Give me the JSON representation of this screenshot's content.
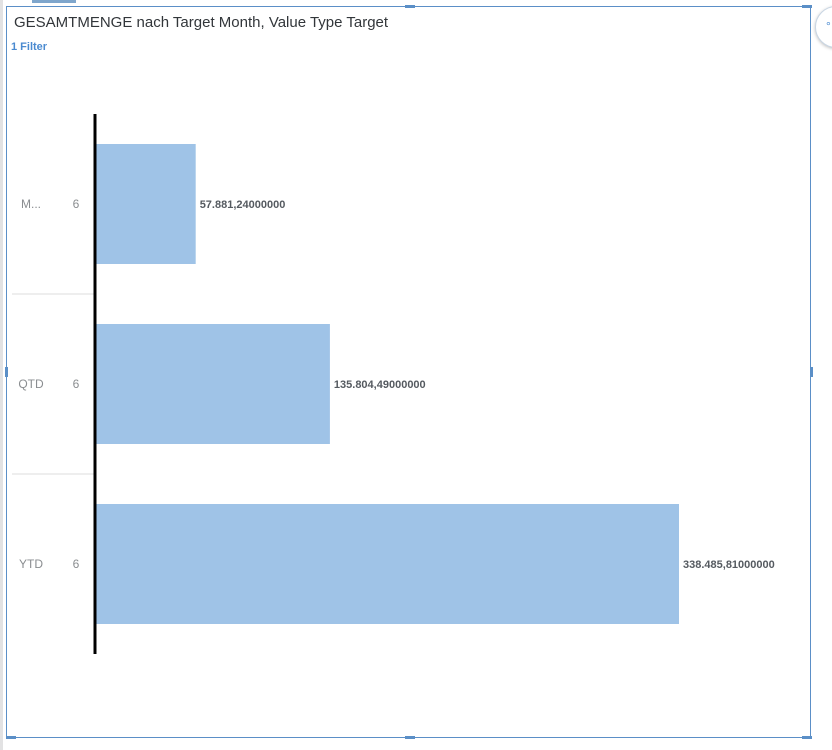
{
  "widget": {
    "title": "GESAMTMENGE nach Target Month, Value Type Target",
    "filter_label": "1 Filter"
  },
  "colors": {
    "bar": "#9fc3e7",
    "axis": "#000000",
    "separator": "#dcdcdc",
    "accent": "#4a8ad0"
  },
  "chart_data": {
    "type": "bar",
    "orientation": "horizontal",
    "title": "GESAMTMENGE nach Target Month, Value Type Target",
    "categories": [
      {
        "label": "M...",
        "sub_label": "6"
      },
      {
        "label": "QTD",
        "sub_label": "6"
      },
      {
        "label": "YTD",
        "sub_label": "6"
      }
    ],
    "series": [
      {
        "values": [
          57881.24,
          135804.49,
          338485.81
        ],
        "value_labels": [
          "57.881,24000000",
          "135.804,49000000",
          "338.485,81000000"
        ]
      }
    ],
    "xlim": [
      0,
      338485.81
    ],
    "grid": false,
    "legend": "none"
  }
}
